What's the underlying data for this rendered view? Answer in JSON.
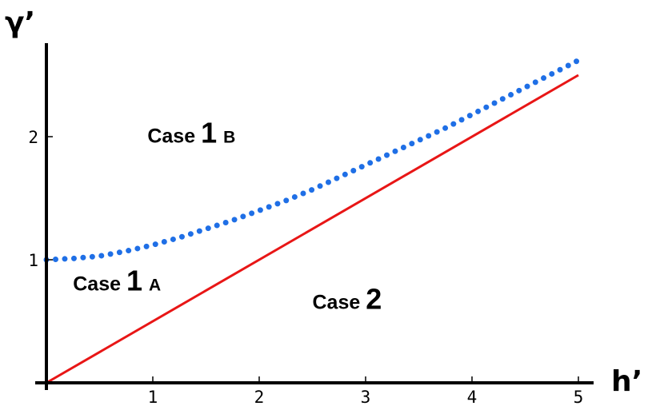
{
  "chart_data": {
    "type": "line",
    "title": "",
    "xlabel": "h’",
    "ylabel": "γ’",
    "xlim": [
      0,
      5.05
    ],
    "ylim": [
      0,
      2.8
    ],
    "xticks": [
      {
        "value": 1,
        "label": "1"
      },
      {
        "value": 2,
        "label": "2"
      },
      {
        "value": 3,
        "label": "3"
      },
      {
        "value": 4,
        "label": "4"
      },
      {
        "value": 5,
        "label": "5"
      }
    ],
    "yticks": [
      {
        "value": 1,
        "label": "1"
      },
      {
        "value": 2,
        "label": "2"
      }
    ],
    "grid": false,
    "legend": "none",
    "series": [
      {
        "style": "dotted",
        "color": "#1f6fe6",
        "x": [
          0,
          0.25,
          0.5,
          0.75,
          1.0,
          1.25,
          1.5,
          1.75,
          2.0,
          2.25,
          2.5,
          2.75,
          3.0,
          3.25,
          3.5,
          3.75,
          4.0,
          4.25,
          4.5,
          4.75,
          5.0
        ],
        "y": [
          1.0,
          1.01,
          1.03,
          1.07,
          1.12,
          1.18,
          1.25,
          1.32,
          1.4,
          1.48,
          1.57,
          1.67,
          1.77,
          1.87,
          1.97,
          2.07,
          2.18,
          2.29,
          2.4,
          2.51,
          2.62
        ]
      },
      {
        "style": "solid",
        "color": "#e81616",
        "x": [
          0,
          5
        ],
        "y": [
          0,
          2.5
        ]
      }
    ],
    "annotations": [
      {
        "main": "Case",
        "number": "1",
        "sub": "B",
        "x": 0.95,
        "y": 1.95
      },
      {
        "main": "Case",
        "number": "1",
        "sub": "A",
        "x": 0.25,
        "y": 0.75
      },
      {
        "main": "Case",
        "number": "2",
        "sub": "",
        "x": 2.5,
        "y": 0.6
      }
    ]
  }
}
